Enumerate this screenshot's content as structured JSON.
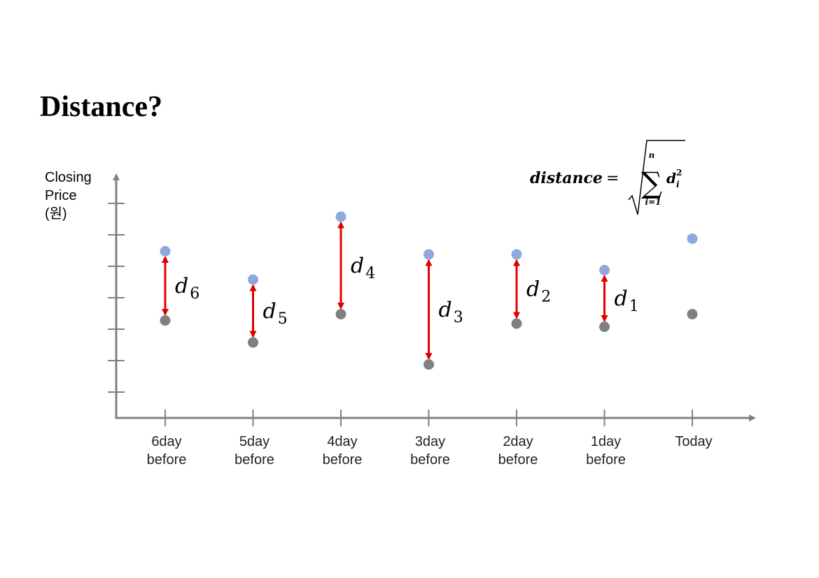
{
  "title": "Distance?",
  "y_axis_label": [
    "Closing",
    "Price",
    "(원)"
  ],
  "formula": {
    "lhs": "distance",
    "equals": "=",
    "sum_upper": "n",
    "sum_lower": "i=1",
    "term": "d",
    "term_subscript": "i",
    "term_superscript": "2"
  },
  "chart_data": {
    "type": "scatter",
    "categories": [
      [
        "6day",
        "before"
      ],
      [
        "5day",
        "before"
      ],
      [
        "4day",
        "before"
      ],
      [
        "3day",
        "before"
      ],
      [
        "2day",
        "before"
      ],
      [
        "1day",
        "before"
      ],
      [
        "Today"
      ]
    ],
    "y_tick_count": 7,
    "series": [
      {
        "color": "#8ea9db",
        "values": [
          5.3,
          4.4,
          6.4,
          5.2,
          5.2,
          4.7,
          5.7
        ]
      },
      {
        "color": "#808080",
        "values": [
          3.1,
          2.4,
          3.3,
          1.7,
          3.0,
          2.9,
          3.3
        ]
      }
    ],
    "distance_labels": [
      {
        "index": 0,
        "letter": "d",
        "sub": "6"
      },
      {
        "index": 1,
        "letter": "d",
        "sub": "5"
      },
      {
        "index": 2,
        "letter": "d",
        "sub": "4"
      },
      {
        "index": 3,
        "letter": "d",
        "sub": "3"
      },
      {
        "index": 4,
        "letter": "d",
        "sub": "2"
      },
      {
        "index": 5,
        "letter": "d",
        "sub": "1"
      }
    ],
    "arrow_color": "#e00000",
    "axis_color": "#808080"
  }
}
